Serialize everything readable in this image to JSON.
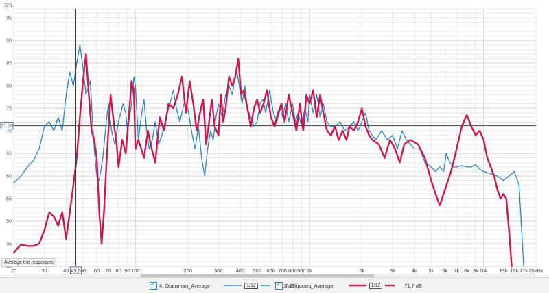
{
  "chart_data": {
    "type": "line",
    "ylabel": "SPL",
    "xunit": "Hz",
    "x_scale": "log",
    "xlim": [
      20,
      20000
    ],
    "ylim": [
      40,
      97
    ],
    "grid": true,
    "y_ticks": [
      40,
      45,
      50,
      55,
      60,
      65,
      70,
      75,
      80,
      85,
      90,
      95
    ],
    "x_ticks": [
      {
        "v": 20,
        "t": "20"
      },
      {
        "v": 30,
        "t": "30"
      },
      {
        "v": 40,
        "t": "40"
      },
      {
        "v": 50,
        "t": "50"
      },
      {
        "v": 60,
        "t": "60"
      },
      {
        "v": 70,
        "t": "70"
      },
      {
        "v": 80,
        "t": "80"
      },
      {
        "v": 90,
        "t": "90"
      },
      {
        "v": 100,
        "t": "100"
      },
      {
        "v": 200,
        "t": "200"
      },
      {
        "v": 300,
        "t": "300"
      },
      {
        "v": 400,
        "t": "400"
      },
      {
        "v": 500,
        "t": "500"
      },
      {
        "v": 600,
        "t": "600"
      },
      {
        "v": 700,
        "t": "700"
      },
      {
        "v": 800,
        "t": "800"
      },
      {
        "v": 900,
        "t": "900"
      },
      {
        "v": 1000,
        "t": "1k"
      },
      {
        "v": 2000,
        "t": "2k"
      },
      {
        "v": 3000,
        "t": "3k"
      },
      {
        "v": 4000,
        "t": "4k"
      },
      {
        "v": 5000,
        "t": "5k"
      },
      {
        "v": 6000,
        "t": "6k"
      },
      {
        "v": 7000,
        "t": "7k"
      },
      {
        "v": 8000,
        "t": "8k"
      },
      {
        "v": 9000,
        "t": "9k"
      },
      {
        "v": 10000,
        "t": "10k"
      },
      {
        "v": 13000,
        "t": "13k"
      },
      {
        "v": 15000,
        "t": "15k"
      },
      {
        "v": 17000,
        "t": "17k"
      },
      {
        "v": 20000,
        "t": "20kHz"
      }
    ],
    "cursor": {
      "x": 45.5,
      "x_label": "45,5",
      "y": 71.16,
      "y_label": "71,16"
    },
    "series": [
      {
        "name": "4: Оригинал_Average",
        "color": "#2b84c6",
        "points": [
          [
            20,
            58.5
          ],
          [
            22,
            60
          ],
          [
            24,
            62
          ],
          [
            26,
            63.5
          ],
          [
            28,
            66
          ],
          [
            30,
            71
          ],
          [
            32,
            72
          ],
          [
            34,
            70
          ],
          [
            36,
            73
          ],
          [
            38,
            70
          ],
          [
            40,
            78
          ],
          [
            42,
            83
          ],
          [
            44,
            80
          ],
          [
            46,
            85
          ],
          [
            48,
            89
          ],
          [
            50,
            84
          ],
          [
            52,
            78
          ],
          [
            55,
            81
          ],
          [
            58,
            66
          ],
          [
            60,
            60
          ],
          [
            62,
            59
          ],
          [
            65,
            64
          ],
          [
            68,
            72
          ],
          [
            70,
            76
          ],
          [
            73,
            70
          ],
          [
            76,
            67
          ],
          [
            80,
            72
          ],
          [
            85,
            76
          ],
          [
            88,
            74
          ],
          [
            90,
            70
          ],
          [
            95,
            76
          ],
          [
            98,
            82
          ],
          [
            100,
            80
          ],
          [
            104,
            68
          ],
          [
            108,
            73
          ],
          [
            112,
            77
          ],
          [
            116,
            70
          ],
          [
            120,
            66
          ],
          [
            125,
            68
          ],
          [
            130,
            72
          ],
          [
            136,
            67
          ],
          [
            142,
            69
          ],
          [
            150,
            73
          ],
          [
            158,
            76
          ],
          [
            165,
            79
          ],
          [
            172,
            75
          ],
          [
            180,
            72
          ],
          [
            190,
            76
          ],
          [
            200,
            75
          ],
          [
            210,
            70
          ],
          [
            220,
            66
          ],
          [
            230,
            71
          ],
          [
            240,
            64
          ],
          [
            250,
            60
          ],
          [
            260,
            66
          ],
          [
            270,
            70
          ],
          [
            280,
            68
          ],
          [
            290,
            73
          ],
          [
            300,
            76
          ],
          [
            315,
            73
          ],
          [
            330,
            78
          ],
          [
            345,
            80
          ],
          [
            360,
            78
          ],
          [
            380,
            84
          ],
          [
            395,
            80
          ],
          [
            410,
            76
          ],
          [
            425,
            80
          ],
          [
            440,
            75
          ],
          [
            460,
            73
          ],
          [
            480,
            71
          ],
          [
            500,
            72
          ],
          [
            520,
            76
          ],
          [
            540,
            77
          ],
          [
            560,
            74
          ],
          [
            590,
            79
          ],
          [
            620,
            74
          ],
          [
            650,
            72
          ],
          [
            680,
            75
          ],
          [
            700,
            73
          ],
          [
            730,
            76
          ],
          [
            760,
            72
          ],
          [
            800,
            76
          ],
          [
            830,
            72
          ],
          [
            860,
            74
          ],
          [
            900,
            71
          ],
          [
            940,
            75
          ],
          [
            980,
            72
          ],
          [
            1000,
            78
          ],
          [
            1050,
            74
          ],
          [
            1100,
            78
          ],
          [
            1150,
            73
          ],
          [
            1200,
            76
          ],
          [
            1260,
            72
          ],
          [
            1320,
            71
          ],
          [
            1400,
            71
          ],
          [
            1500,
            72
          ],
          [
            1600,
            70
          ],
          [
            1700,
            71
          ],
          [
            1800,
            72
          ],
          [
            1900,
            70
          ],
          [
            2000,
            72
          ],
          [
            2100,
            74
          ],
          [
            2200,
            70
          ],
          [
            2400,
            68
          ],
          [
            2600,
            70
          ],
          [
            2800,
            68
          ],
          [
            3000,
            69
          ],
          [
            3200,
            66
          ],
          [
            3400,
            70
          ],
          [
            3600,
            68
          ],
          [
            3800,
            67
          ],
          [
            4000,
            66
          ],
          [
            4300,
            66
          ],
          [
            4600,
            63
          ],
          [
            5000,
            62
          ],
          [
            5300,
            61
          ],
          [
            5600,
            62
          ],
          [
            5900,
            61
          ],
          [
            6100,
            65
          ],
          [
            6400,
            63
          ],
          [
            6700,
            62
          ],
          [
            7000,
            62
          ],
          [
            7500,
            62.3
          ],
          [
            8000,
            62
          ],
          [
            8500,
            62
          ],
          [
            9000,
            62.5
          ],
          [
            9500,
            61.5
          ],
          [
            10000,
            61
          ],
          [
            11000,
            60.5
          ],
          [
            12000,
            60
          ],
          [
            13000,
            59
          ],
          [
            14000,
            60
          ],
          [
            15000,
            61
          ],
          [
            16000,
            58
          ],
          [
            17000,
            40
          ]
        ]
      },
      {
        "name": "7: Образец_Average",
        "color": "#d0164e",
        "points": [
          [
            20,
            43
          ],
          [
            21,
            44
          ],
          [
            22,
            44.8
          ],
          [
            24,
            44.5
          ],
          [
            26,
            44.5
          ],
          [
            28,
            45
          ],
          [
            30,
            48
          ],
          [
            32,
            52
          ],
          [
            34,
            51
          ],
          [
            36,
            49
          ],
          [
            38,
            52
          ],
          [
            40,
            46
          ],
          [
            42,
            52
          ],
          [
            44,
            58
          ],
          [
            46,
            64
          ],
          [
            48,
            73
          ],
          [
            50,
            81
          ],
          [
            52,
            87
          ],
          [
            54,
            78
          ],
          [
            56,
            70
          ],
          [
            58,
            68
          ],
          [
            60,
            64
          ],
          [
            62,
            52
          ],
          [
            64,
            45
          ],
          [
            66,
            52
          ],
          [
            68,
            62
          ],
          [
            72,
            78
          ],
          [
            75,
            72
          ],
          [
            78,
            67
          ],
          [
            80,
            62
          ],
          [
            84,
            68
          ],
          [
            88,
            65
          ],
          [
            92,
            74
          ],
          [
            95,
            81
          ],
          [
            98,
            79
          ],
          [
            100,
            66
          ],
          [
            104,
            68
          ],
          [
            108,
            66
          ],
          [
            112,
            64
          ],
          [
            118,
            70
          ],
          [
            124,
            66
          ],
          [
            130,
            63
          ],
          [
            138,
            73
          ],
          [
            146,
            70
          ],
          [
            155,
            76
          ],
          [
            165,
            75
          ],
          [
            175,
            78
          ],
          [
            185,
            82
          ],
          [
            195,
            74
          ],
          [
            205,
            81
          ],
          [
            215,
            76
          ],
          [
            225,
            70
          ],
          [
            235,
            74
          ],
          [
            245,
            77
          ],
          [
            255,
            67
          ],
          [
            265,
            72
          ],
          [
            275,
            77
          ],
          [
            285,
            71
          ],
          [
            300,
            69
          ],
          [
            310,
            78
          ],
          [
            320,
            72
          ],
          [
            330,
            75
          ],
          [
            345,
            82
          ],
          [
            360,
            80
          ],
          [
            375,
            82
          ],
          [
            390,
            86
          ],
          [
            405,
            78
          ],
          [
            420,
            79
          ],
          [
            440,
            75
          ],
          [
            460,
            71
          ],
          [
            480,
            75
          ],
          [
            500,
            77
          ],
          [
            520,
            74
          ],
          [
            545,
            76
          ],
          [
            570,
            79
          ],
          [
            600,
            73
          ],
          [
            630,
            71
          ],
          [
            660,
            74
          ],
          [
            690,
            76
          ],
          [
            720,
            72
          ],
          [
            760,
            78
          ],
          [
            800,
            74
          ],
          [
            840,
            70
          ],
          [
            880,
            76
          ],
          [
            920,
            70
          ],
          [
            960,
            78
          ],
          [
            1000,
            76
          ],
          [
            1050,
            79
          ],
          [
            1100,
            73
          ],
          [
            1150,
            78
          ],
          [
            1200,
            74
          ],
          [
            1260,
            70
          ],
          [
            1330,
            69
          ],
          [
            1400,
            71
          ],
          [
            1470,
            68
          ],
          [
            1550,
            70
          ],
          [
            1630,
            68
          ],
          [
            1700,
            71
          ],
          [
            1800,
            70
          ],
          [
            1900,
            72
          ],
          [
            2000,
            75
          ],
          [
            2100,
            71
          ],
          [
            2200,
            69
          ],
          [
            2300,
            68
          ],
          [
            2500,
            67
          ],
          [
            2700,
            64
          ],
          [
            2900,
            68
          ],
          [
            3100,
            66
          ],
          [
            3300,
            63
          ],
          [
            3500,
            67
          ],
          [
            3800,
            68
          ],
          [
            4200,
            67
          ],
          [
            4600,
            64
          ],
          [
            5000,
            59
          ],
          [
            5300,
            56
          ],
          [
            5600,
            53.5
          ],
          [
            6000,
            57
          ],
          [
            6500,
            61
          ],
          [
            7000,
            66
          ],
          [
            7500,
            71
          ],
          [
            8000,
            73.5
          ],
          [
            8500,
            71
          ],
          [
            9000,
            69
          ],
          [
            9500,
            70
          ],
          [
            10000,
            68
          ],
          [
            10500,
            64
          ],
          [
            11000,
            62
          ],
          [
            11500,
            60
          ],
          [
            12000,
            57
          ],
          [
            12500,
            55
          ],
          [
            13000,
            56
          ],
          [
            13500,
            55
          ],
          [
            14000,
            48
          ],
          [
            14500,
            40
          ]
        ]
      }
    ]
  },
  "ui": {
    "average_button": "Average the responses",
    "legend": [
      {
        "name": "4: Оригинал_Average",
        "smoothing": "1/12",
        "value": "78,5 dB"
      },
      {
        "name": "7: Образец_Average",
        "smoothing": "1/12",
        "value": "71,7 dB"
      }
    ]
  }
}
